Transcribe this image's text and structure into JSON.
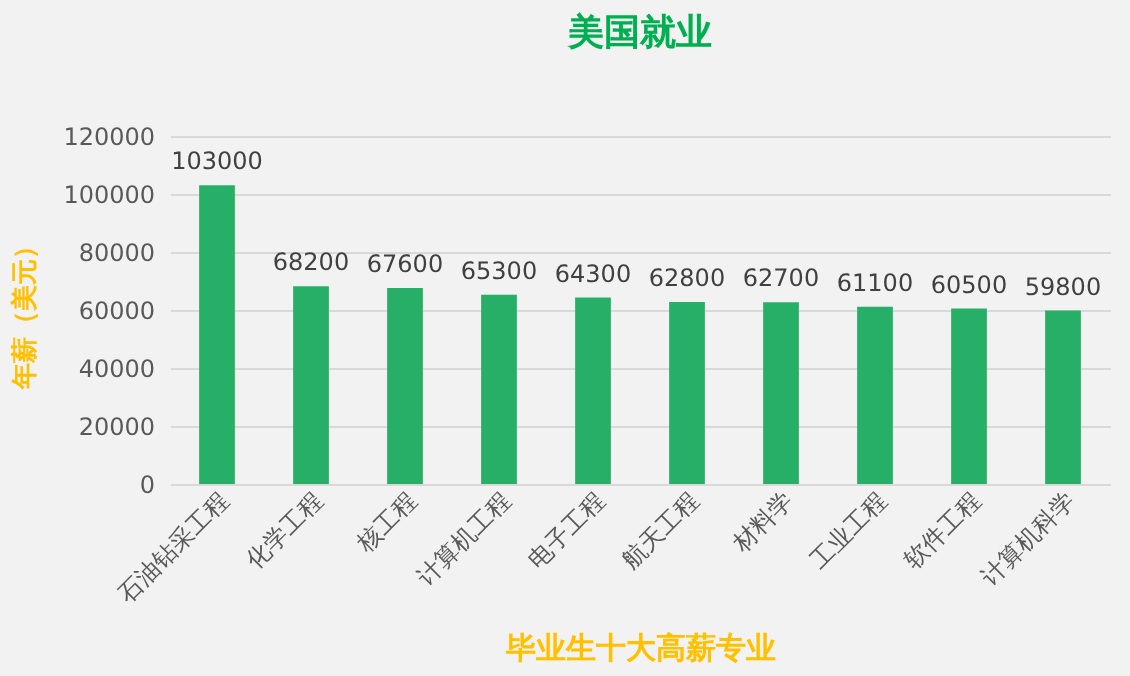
{
  "chart_data": {
    "type": "bar",
    "title": "美国就业",
    "xlabel": "毕业生十大高薪专业",
    "ylabel": "年薪（美元）",
    "categories": [
      "石油钻采工程",
      "化学工程",
      "核工程",
      "计算机工程",
      "电子工程",
      "航天工程",
      "材料学",
      "工业工程",
      "软件工程",
      "计算机科学"
    ],
    "values": [
      103000,
      68200,
      67600,
      65300,
      64300,
      62800,
      62700,
      61100,
      60500,
      59800
    ],
    "color": "#27ae67",
    "ylim": [
      0,
      120000
    ],
    "yticks": [
      0,
      20000,
      40000,
      60000,
      80000,
      100000,
      120000
    ],
    "grid": "y",
    "data_labels": true
  }
}
